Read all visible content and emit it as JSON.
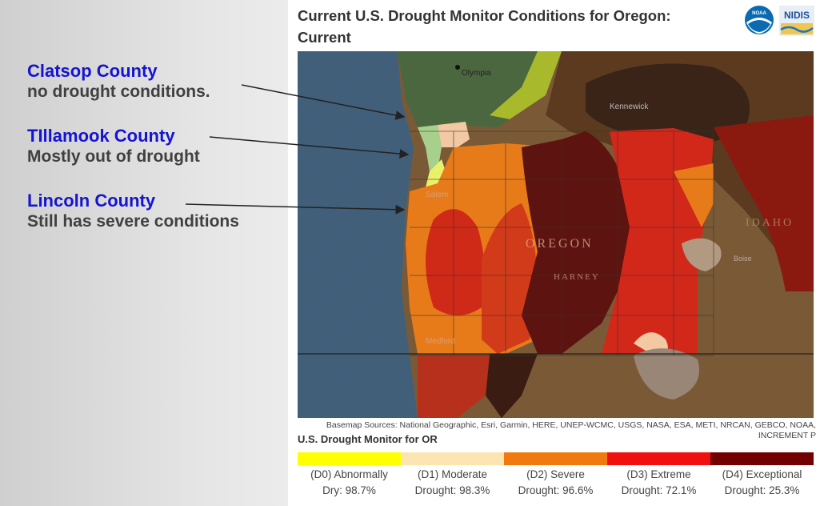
{
  "callouts": [
    {
      "county": "Clatsop County",
      "desc": "no drought conditions."
    },
    {
      "county": "TIllamook County",
      "desc": "Mostly out of drought"
    },
    {
      "county": "Lincoln County",
      "desc": "Still has severe conditions"
    }
  ],
  "panel": {
    "title": "Current U.S. Drought Monitor Conditions for Oregon: Current",
    "logo_noaa": "NOAA",
    "logo_nidis": "NIDIS",
    "basemap_sources": "Basemap Sources: National Geographic, Esri, Garmin, HERE, UNEP-WCMC, USGS, NASA, ESA, METI, NRCAN, GEBCO, NOAA, INCREMENT P",
    "legend_title": "U.S. Drought Monitor for OR",
    "legend": [
      {
        "line1": "(D0) Abnormally",
        "line2": "Dry: 98.7%",
        "color": "#ffff00"
      },
      {
        "line1": "(D1) Moderate",
        "line2": "Drought: 98.3%",
        "color": "#fcd37f"
      },
      {
        "line1": "(D2) Severe",
        "line2": "Drought: 96.6%",
        "color": "#ffaa00"
      },
      {
        "line1": "(D3) Extreme",
        "line2": "Drought: 72.1%",
        "color": "#e60000"
      },
      {
        "line1": "(D4) Exceptional",
        "line2": "Drought: 25.3%",
        "color": "#730000"
      }
    ]
  },
  "map_labels": {
    "olympia": "Olympia",
    "kennewick": "Kennewick",
    "oregon": "OREGON",
    "idaho": "IDAHO",
    "medford": "Medford",
    "salem": "Salem",
    "harney": "HARNEY",
    "boise": "Boise"
  }
}
